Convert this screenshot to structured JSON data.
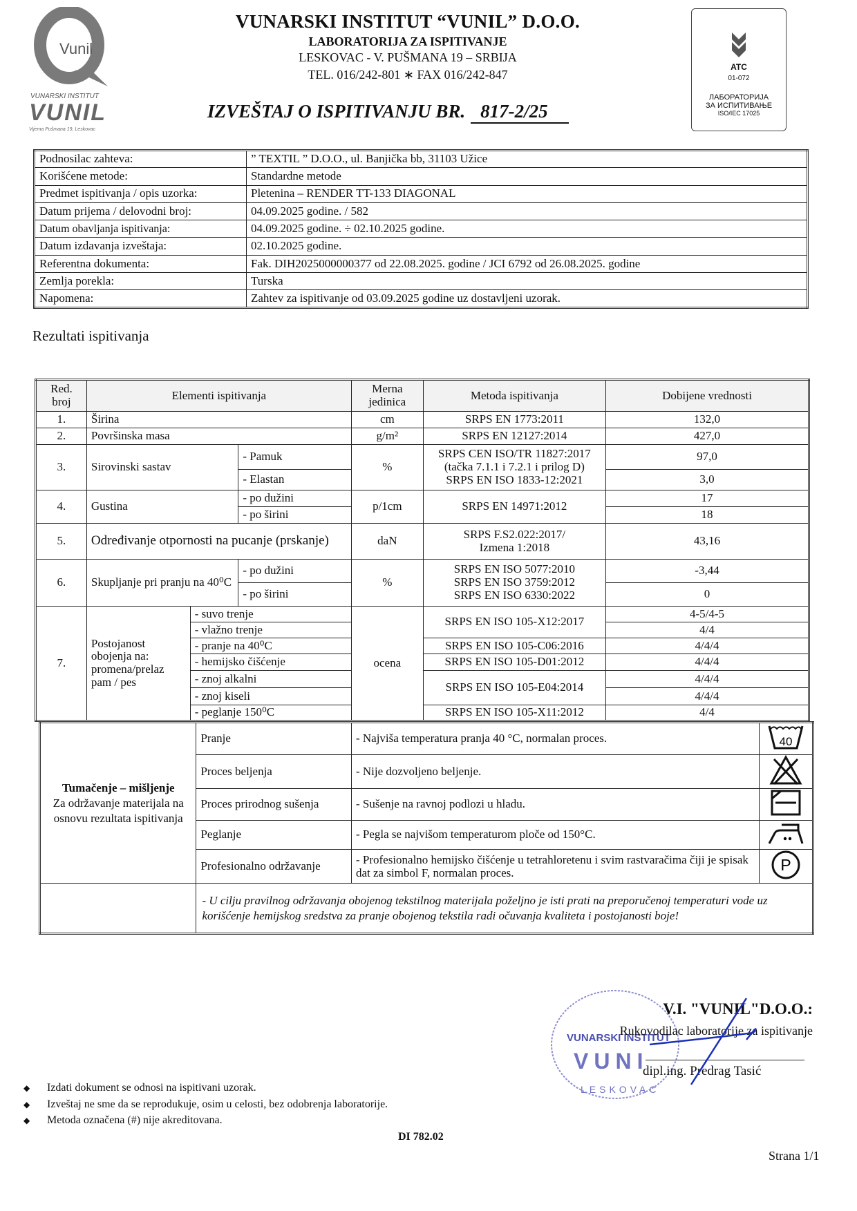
{
  "header": {
    "logo_text": "Vunil",
    "logo_caption_top": "VUNARSKI INSTITUT",
    "logo_caption_main": "VUNIL",
    "logo_caption_bottom": "Vijema Pušmana 19, Leskovac",
    "institute": "VUNARSKI INSTITUT “VUNIL” D.O.O.",
    "lab": "LABORATORIJA ZA ISPITIVANJE",
    "address": "LESKOVAC - V. PUŠMANA 19 – SRBIJA",
    "phone": "TEL. 016/242-801 ∗ FAX  016/242-847",
    "report_label": "IZVEŠTAJ O ISPITIVANJU BR.",
    "report_number": "817-2/25",
    "accreditation": {
      "code": "ATC",
      "number": "01-072",
      "line1": "ЛАБОРАТОРИЈА",
      "line2": "ЗА ИСПИТИВАЊЕ",
      "line3": "ISO/IEC 17025"
    }
  },
  "info": [
    {
      "label": "Podnosilac zahteva:",
      "value": "” TEXTIL ” D.O.O., ul. Banjička bb, 31103 Užice"
    },
    {
      "label": "Korišćene metode:",
      "value": "Standardne metode"
    },
    {
      "label": "Predmet ispitivanja / opis uzorka:",
      "value": "Pletenina – RENDER TT-133 DIAGONAL"
    },
    {
      "label": "Datum prijema / delovodni broj:",
      "value": "04.09.2025 godine.     /     582"
    },
    {
      "label": "Datum obavljanja ispitivanja:",
      "value": "04.09.2025 godine. ÷ 02.10.2025 godine."
    },
    {
      "label": "Datum izdavanja izveštaja:",
      "value": "02.10.2025 godine."
    },
    {
      "label": "Referentna dokumenta:",
      "value": "Fak. DIH2025000000377 od 22.08.2025. godine  /  JCI 6792 od 26.08.2025. godine"
    },
    {
      "label": "Zemlja porekla:",
      "value": "Turska"
    },
    {
      "label": "Napomena:",
      "value": "Zahtev za ispitivanje od 03.09.2025 godine uz dostavljeni uzorak."
    }
  ],
  "results_title": "Rezultati ispitivanja",
  "results": {
    "headers": [
      "Red. broj",
      "Elementi ispitivanja",
      "Merna jedinica",
      "Metoda ispitivanja",
      "Dobijene vrednosti"
    ],
    "r1": {
      "no": "1.",
      "name": "Širina",
      "unit": "cm",
      "method": "SRPS EN 1773:2011",
      "value": "132,0"
    },
    "r2": {
      "no": "2.",
      "name": "Površinska masa",
      "unit": "g/m²",
      "method": "SRPS EN 12127:2014",
      "value": "427,0"
    },
    "r3": {
      "no": "3.",
      "name": "Sirovinski sastav",
      "sub1": "- Pamuk",
      "sub2": "- Elastan",
      "unit": "%",
      "method1": "SRPS CEN ISO/TR 11827:2017",
      "method2": "(tačka 7.1.1 i 7.2.1 i prilog D)",
      "method3": "SRPS EN ISO 1833-12:2021",
      "value1": "97,0",
      "value2": "3,0"
    },
    "r4": {
      "no": "4.",
      "name": "Gustina",
      "sub1": "- po dužini",
      "sub2": "- po širini",
      "unit": "p/1cm",
      "method": "SRPS EN 14971:2012",
      "value1": "17",
      "value2": "18"
    },
    "r5": {
      "no": "5.",
      "name": "Određivanje otpornosti na pucanje (prskanje)",
      "unit": "daN",
      "method1": "SRPS F.S2.022:2017/",
      "method2": "Izmena 1:2018",
      "value": "43,16"
    },
    "r6": {
      "no": "6.",
      "name": "Skupljanje pri pranju na 40⁰C",
      "sub1": "- po dužini",
      "sub2": "- po širini",
      "unit": "%",
      "method1": "SRPS EN ISO 5077:2010",
      "method2": "SRPS EN ISO 3759:2012",
      "method3": "SRPS EN ISO 6330:2022",
      "value1": "-3,44",
      "value2": "0"
    },
    "r7": {
      "no": "7.",
      "name": "Postojanost obojenja na: promena/prelaz pam / pes",
      "unit": "ocena",
      "subs": [
        "- suvo trenje",
        "- vlažno trenje",
        "- pranje na 40⁰C",
        "- hemijsko čišćenje",
        "- znoj alkalni",
        "- znoj kiseli",
        "- peglanje 150⁰C"
      ],
      "methods": [
        "SRPS EN ISO 105-X12:2017",
        "SRPS EN ISO 105-C06:2016",
        "SRPS EN ISO 105-D01:2012",
        "SRPS EN ISO 105-E04:2014",
        "SRPS EN ISO 105-X11:2012"
      ],
      "values": [
        "4-5/4-5",
        "4/4",
        "4/4/4",
        "4/4/4",
        "4/4/4",
        "4/4/4",
        "4/4"
      ]
    }
  },
  "care": {
    "title": "Tumačenje – mišljenje",
    "subtitle": "Za održavanje materijala na osnovu rezultata ispitivanja",
    "rows": [
      {
        "label": "Pranje",
        "text": "-  Najviša temperatura pranja 40 °C, normalan proces.",
        "icon": "wash-40-icon",
        "icon_text": "40"
      },
      {
        "label": "Proces beljenja",
        "text": "-  Nije dozvoljeno beljenje.",
        "icon": "no-bleach-icon"
      },
      {
        "label": "Proces prirodnog sušenja",
        "text": "-  Sušenje na ravnoj podlozi u hladu.",
        "icon": "dry-flat-shade-icon"
      },
      {
        "label": "Peglanje",
        "text": "-  Pegla se najvišom temperaturom ploče od 150°C.",
        "icon": "iron-two-dots-icon"
      },
      {
        "label": "Profesionalno održavanje",
        "text": "-  Profesionalno hemijsko čišćenje u tetrahloretenu i svim rastvaračima čiji je spisak dat za simbol F, normalan proces.",
        "icon": "professional-clean-p-icon",
        "icon_text": "P"
      }
    ],
    "note": "- U cilju pravilnog održavanja obojenog tekstilnog materijala poželjno je isti prati na preporučenoj temperaturi vode uz korišćenje hemijskog sredstva za pranje obojenog tekstila radi očuvanja kvaliteta i postojanosti boje!"
  },
  "signature": {
    "company": "V.I. \"VUNIL\"D.O.O.:",
    "role": "Rukovodilac laboratorije za ispitivanje",
    "name": "dipl.ing. Predrag Tasić",
    "stamp_text": "VUNARSKI INSTITUT VUNIL LESKOVAC"
  },
  "footnotes": [
    "Izdati dokument se odnosi na ispitivani uzorak.",
    "Izveštaj ne sme da se reprodukuje, osim u celosti, bez odobrenja laboratorije.",
    "Metoda označena (#) nije akreditovana."
  ],
  "doc_code": "DI 782.02",
  "page": "Strana 1/1",
  "colors": {
    "stamp": "#4a4fb0",
    "signature_ink": "#1a2fb8",
    "logo_gray": "#7a7a7a"
  }
}
